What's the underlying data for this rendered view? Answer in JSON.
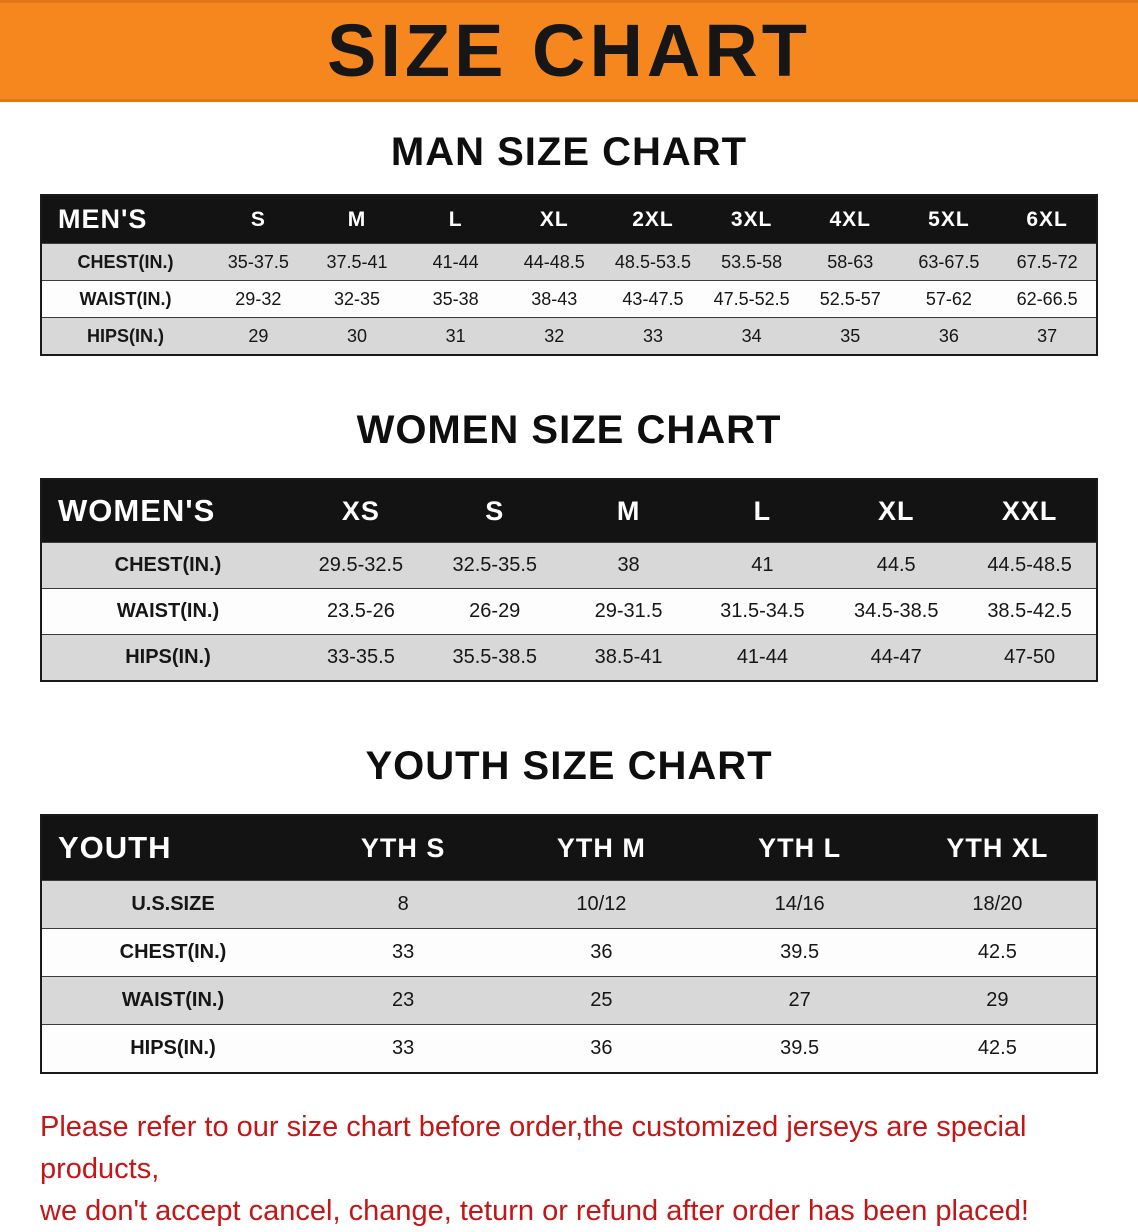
{
  "banner": {
    "title": "SIZE CHART"
  },
  "sections": [
    {
      "heading": "MAN SIZE CHART",
      "table": {
        "header_label": "MEN'S",
        "columns": [
          "S",
          "M",
          "L",
          "XL",
          "2XL",
          "3XL",
          "4XL",
          "5XL",
          "6XL"
        ],
        "rows": [
          {
            "label": "CHEST(IN.)",
            "values": [
              "35-37.5",
              "37.5-41",
              "41-44",
              "44-48.5",
              "48.5-53.5",
              "53.5-58",
              "58-63",
              "63-67.5",
              "67.5-72"
            ]
          },
          {
            "label": "WAIST(IN.)",
            "values": [
              "29-32",
              "32-35",
              "35-38",
              "38-43",
              "43-47.5",
              "47.5-52.5",
              "52.5-57",
              "57-62",
              "62-66.5"
            ]
          },
          {
            "label": "HIPS(IN.)",
            "values": [
              "29",
              "30",
              "31",
              "32",
              "33",
              "34",
              "35",
              "36",
              "37"
            ]
          }
        ]
      }
    },
    {
      "heading": "WOMEN SIZE CHART",
      "table": {
        "header_label": "WOMEN'S",
        "columns": [
          "XS",
          "S",
          "M",
          "L",
          "XL",
          "XXL"
        ],
        "rows": [
          {
            "label": "CHEST(IN.)",
            "values": [
              "29.5-32.5",
              "32.5-35.5",
              "38",
              "41",
              "44.5",
              "44.5-48.5"
            ]
          },
          {
            "label": "WAIST(IN.)",
            "values": [
              "23.5-26",
              "26-29",
              "29-31.5",
              "31.5-34.5",
              "34.5-38.5",
              "38.5-42.5"
            ]
          },
          {
            "label": "HIPS(IN.)",
            "values": [
              "33-35.5",
              "35.5-38.5",
              "38.5-41",
              "41-44",
              "44-47",
              "47-50"
            ]
          }
        ]
      }
    },
    {
      "heading": "YOUTH SIZE CHART",
      "table": {
        "header_label": "YOUTH",
        "columns": [
          "YTH S",
          "YTH M",
          "YTH L",
          "YTH XL"
        ],
        "rows": [
          {
            "label": "U.S.SIZE",
            "values": [
              "8",
              "10/12",
              "14/16",
              "18/20"
            ]
          },
          {
            "label": "CHEST(IN.)",
            "values": [
              "33",
              "36",
              "39.5",
              "42.5"
            ]
          },
          {
            "label": "WAIST(IN.)",
            "values": [
              "23",
              "25",
              "27",
              "29"
            ]
          },
          {
            "label": "HIPS(IN.)",
            "values": [
              "33",
              "36",
              "39.5",
              "42.5"
            ]
          }
        ]
      }
    }
  ],
  "footer": {
    "line1": "Please refer to our size chart before order,the customized jerseys are special products,",
    "line2": "we don't accept cancel, change, teturn or refund after order has been placed!"
  },
  "colors": {
    "banner_bg": "#f6871f",
    "header_bg": "#131313",
    "row_alt_bg": "#d8d8d8",
    "footer_text": "#c41616"
  }
}
